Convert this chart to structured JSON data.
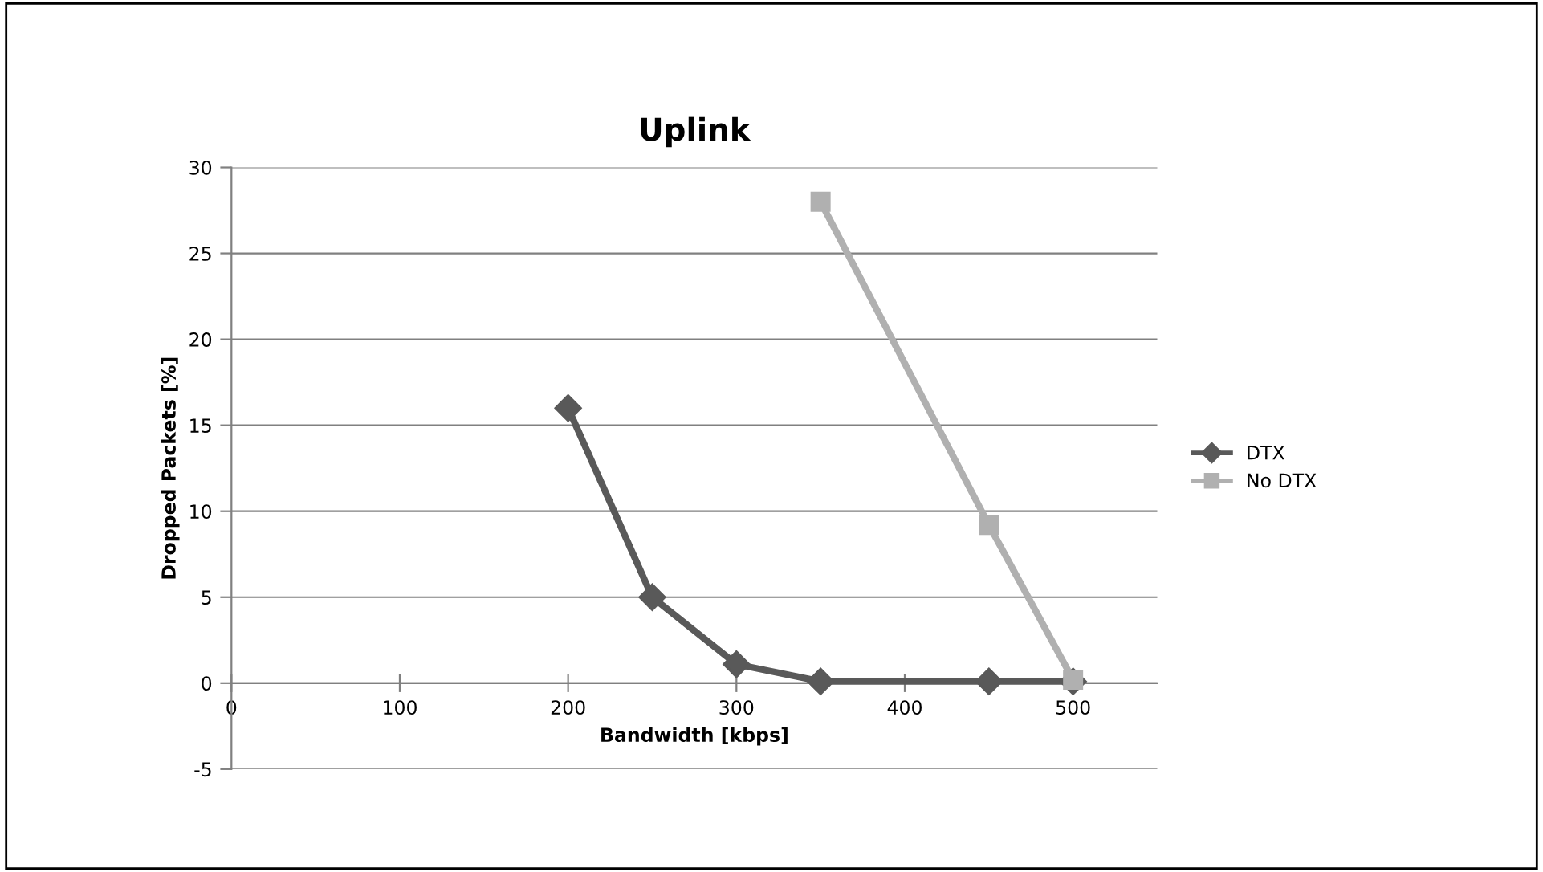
{
  "chart_data": {
    "type": "line",
    "title": "Uplink",
    "xlabel": "Bandwidth [kbps]",
    "ylabel": "Dropped Packets [%]",
    "xlim": [
      0,
      550
    ],
    "xticks": [
      0,
      100,
      200,
      300,
      400,
      500
    ],
    "ylim": [
      -5,
      30
    ],
    "yticks": [
      -5,
      0,
      5,
      10,
      15,
      20,
      25,
      30
    ],
    "grid": "y",
    "legend": "right",
    "series": [
      {
        "name": "DTX",
        "color": "#595959",
        "marker": "diamond",
        "x": [
          200,
          250,
          300,
          350,
          450,
          500
        ],
        "values": [
          16,
          5,
          1.1,
          0.1,
          0.1,
          0.1
        ]
      },
      {
        "name": "No DTX",
        "color": "#b0b0b0",
        "marker": "square",
        "x": [
          350,
          450,
          500
        ],
        "values": [
          28,
          9.2,
          0.2
        ]
      }
    ]
  }
}
